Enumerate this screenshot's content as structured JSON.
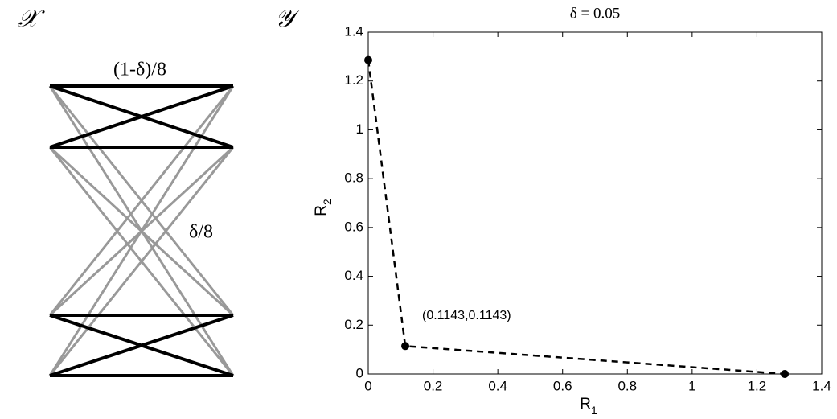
{
  "diagram": {
    "left_label": "𝒳",
    "right_label": "𝒴",
    "top_weight": "(1-δ)/8",
    "cross_weight": "δ/8"
  },
  "chart_data": {
    "type": "line",
    "title": "δ = 0.05",
    "xlabel": "R",
    "xlabel_subscript": "1",
    "ylabel": "R",
    "ylabel_subscript": "2",
    "x": [
      0,
      0.1143,
      1.286
    ],
    "values": [
      1.286,
      0.1143,
      0
    ],
    "color": "#000000",
    "line_style": "dashed",
    "markers": true,
    "annotation": "(0.1143,0.1143)",
    "xlim": [
      0,
      1.4
    ],
    "xticks": [
      0,
      0.2,
      0.4,
      0.6,
      0.8,
      1,
      1.2,
      1.4
    ],
    "ylim": [
      0,
      1.4
    ],
    "yticks": [
      0,
      0.2,
      0.4,
      0.6,
      0.8,
      1,
      1.2,
      1.4
    ]
  }
}
